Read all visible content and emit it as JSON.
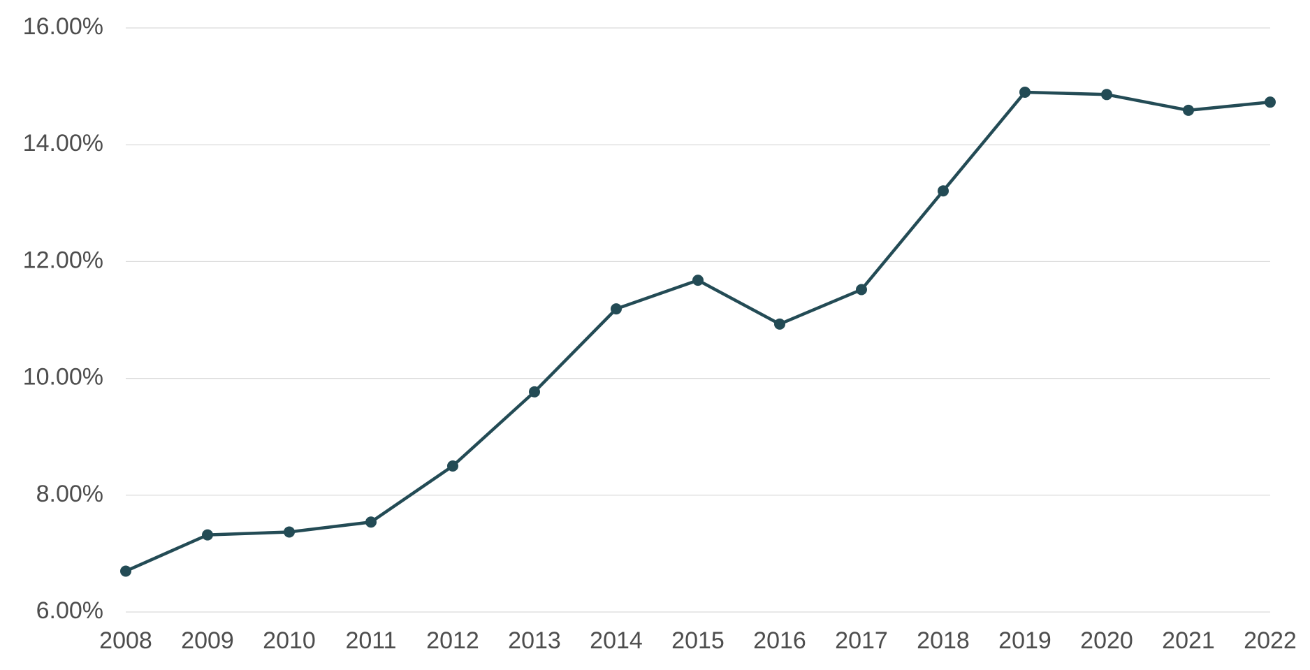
{
  "chart_data": {
    "type": "line",
    "title": "",
    "xlabel": "",
    "ylabel": "",
    "categories": [
      "2008",
      "2009",
      "2010",
      "2011",
      "2012",
      "2013",
      "2014",
      "2015",
      "2016",
      "2017",
      "2018",
      "2019",
      "2020",
      "2021",
      "2022"
    ],
    "series": [
      {
        "values": [
          6.7,
          7.32,
          7.37,
          7.54,
          8.5,
          9.77,
          11.19,
          11.68,
          10.93,
          11.52,
          13.21,
          14.9,
          14.86,
          14.59,
          14.73
        ],
        "color": "#234b55"
      }
    ],
    "ylim": [
      6,
      16
    ],
    "yticks": [
      6,
      8,
      10,
      12,
      14,
      16
    ],
    "ytick_labels": [
      "6.00%",
      "8.00%",
      "10.00%",
      "12.00%",
      "14.00%",
      "16.00%"
    ],
    "grid": true,
    "legend": "none"
  }
}
